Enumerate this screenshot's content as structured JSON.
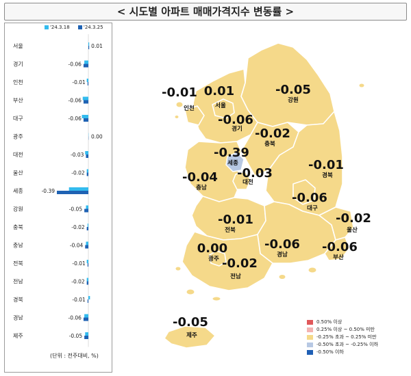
{
  "title": "< 시도별 아파트 매매가격지수 변동률 >",
  "unit_note": "(단위 : 전주대비, %)",
  "legend": [
    {
      "label": "'24.3.18",
      "color": "#33bbee"
    },
    {
      "label": "'24.3.25",
      "color": "#1f62b3"
    }
  ],
  "map_legend": [
    {
      "label": "0.50% 이상",
      "color": "#e0585b"
    },
    {
      "label": "0.25% 이상 ~ 0.50% 미만",
      "color": "#f3b3b1"
    },
    {
      "label": "-0.25% 초과 ~ 0.25% 미만",
      "color": "#f5d98a"
    },
    {
      "label": "-0.50% 초과 ~ -0.25% 이하",
      "color": "#b7c8e3"
    },
    {
      "label": "-0.50% 이하",
      "color": "#1f5fb5"
    }
  ],
  "map_labels": [
    {
      "region": "인천",
      "value": "-0.01"
    },
    {
      "region": "서울",
      "value": "0.01"
    },
    {
      "region": "강원",
      "value": "-0.05"
    },
    {
      "region": "경기",
      "value": "-0.06"
    },
    {
      "region": "충북",
      "value": "-0.02"
    },
    {
      "region": "세종",
      "value": "-0.39"
    },
    {
      "region": "충남",
      "value": "-0.04"
    },
    {
      "region": "대전",
      "value": "-0.03"
    },
    {
      "region": "경북",
      "value": "-0.01"
    },
    {
      "region": "대구",
      "value": "-0.06"
    },
    {
      "region": "울산",
      "value": "-0.02"
    },
    {
      "region": "전북",
      "value": "-0.01"
    },
    {
      "region": "광주",
      "value": "0.00"
    },
    {
      "region": "경남",
      "value": "-0.06"
    },
    {
      "region": "부산",
      "value": "-0.06"
    },
    {
      "region": "전남",
      "value": "-0.02"
    },
    {
      "region": "제주",
      "value": "-0.05"
    }
  ],
  "chart_data": {
    "type": "bar",
    "orientation": "horizontal",
    "categories": [
      "서울",
      "경기",
      "인천",
      "부산",
      "대구",
      "광주",
      "대전",
      "울산",
      "세종",
      "강원",
      "충북",
      "충남",
      "전북",
      "전남",
      "경북",
      "경남",
      "제주"
    ],
    "series": [
      {
        "name": "'24.3.18",
        "values": [
          0.01,
          -0.05,
          -0.02,
          -0.07,
          -0.08,
          0.0,
          -0.04,
          -0.02,
          -0.24,
          -0.03,
          -0.01,
          -0.03,
          -0.02,
          -0.02,
          0.02,
          -0.05,
          -0.04
        ]
      },
      {
        "name": "'24.3.25",
        "values": [
          0.01,
          -0.06,
          -0.01,
          -0.06,
          -0.06,
          0.0,
          -0.03,
          -0.02,
          -0.39,
          -0.05,
          -0.02,
          -0.04,
          -0.01,
          -0.02,
          -0.01,
          -0.06,
          -0.05
        ]
      }
    ],
    "data_labels": [
      "0.01",
      "-0.06",
      "-0.01",
      "-0.06",
      "-0.06",
      "0.00",
      "-0.03",
      "-0.02",
      "-0.39",
      "-0.05",
      "-0.02",
      "-0.04",
      "-0.01",
      "-0.02",
      "-0.01",
      "-0.06",
      "-0.05"
    ]
  }
}
